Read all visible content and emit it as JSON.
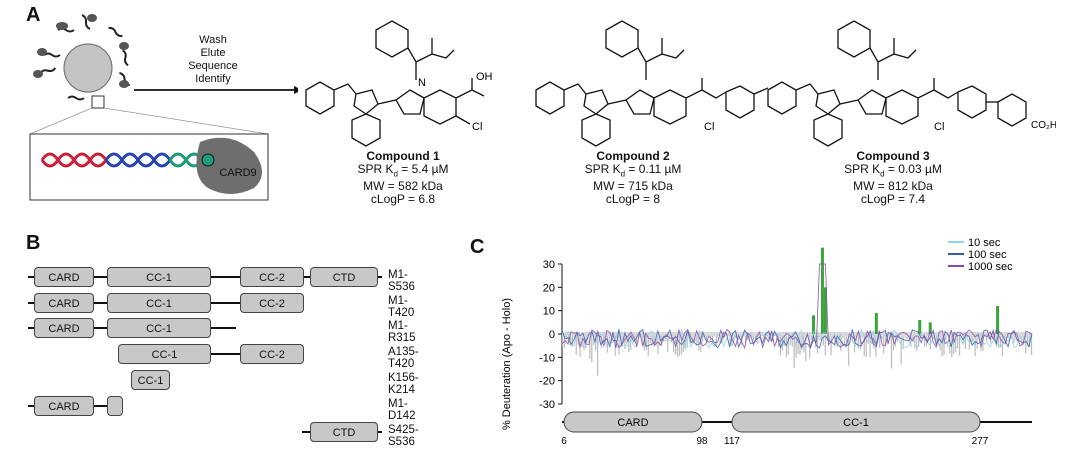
{
  "panels": {
    "a": "A",
    "b": "B",
    "c": "C"
  },
  "panel_a": {
    "steps": [
      "Wash",
      "Elute",
      "Sequence",
      "Identify"
    ],
    "card_label": "CARD9",
    "compounds": [
      {
        "name": "Compound 1",
        "kd": "SPR K",
        "kd_sub": "d",
        "kd_val": " = 5.4 µM",
        "mw": "MW = 582 kDa",
        "clogp": "cLogP = 6.8",
        "tail": "OH",
        "cl": "Cl"
      },
      {
        "name": "Compound 2",
        "kd": "SPR K",
        "kd_sub": "d",
        "kd_val": " = 0.11 µM",
        "mw": "MW = 715 kDa",
        "clogp": "cLogP = 8",
        "cl": "Cl"
      },
      {
        "name": "Compound 3",
        "kd": "SPR K",
        "kd_sub": "d",
        "kd_val": " = 0.03 µM",
        "mw": "MW = 812 kDa",
        "clogp": "cLogP = 7.4",
        "tail": "CO₂H",
        "cl": "Cl"
      }
    ]
  },
  "panel_b": {
    "constructs": [
      {
        "label": "M1-S536",
        "domains": [
          "CARD",
          "CC-1",
          "CC-2",
          "CTD"
        ]
      },
      {
        "label": "M1-T420",
        "domains": [
          "CARD",
          "CC-1",
          "CC-2"
        ]
      },
      {
        "label": "M1-R315",
        "domains": [
          "CARD",
          "CC-1"
        ]
      },
      {
        "label": "A135-T420",
        "domains": [
          "CC-1",
          "CC-2"
        ]
      },
      {
        "label": "K156-K214",
        "domains": [
          "CC-1"
        ]
      },
      {
        "label": "M1-D142",
        "domains": [
          "CARD"
        ]
      },
      {
        "label": "S425-S536",
        "domains": [
          "CTD"
        ]
      }
    ]
  },
  "panel_c": {
    "chart_data": {
      "type": "bar",
      "ylabel": "% Deuteration (Apo - Holo)",
      "ylim": [
        -30,
        30
      ],
      "yticks": [
        30,
        20,
        10,
        0,
        -10,
        -20,
        -30
      ],
      "legend_position": "top-right",
      "series": [
        {
          "name": "10 sec",
          "color": "#8fd3e8"
        },
        {
          "name": "100 sec",
          "color": "#3b5aa8"
        },
        {
          "name": "1000 sec",
          "color": "#8a4aa8"
        }
      ],
      "highlight_peaks": [
        {
          "residue": 180,
          "value": 37
        },
        {
          "residue": 182,
          "value": 20
        },
        {
          "residue": 174,
          "value": 8
        },
        {
          "residue": 216,
          "value": 9
        },
        {
          "residue": 245,
          "value": 6
        },
        {
          "residue": 252,
          "value": 5
        },
        {
          "residue": 297,
          "value": 12
        }
      ],
      "domains": [
        {
          "name": "CARD",
          "start": "6",
          "end": "98"
        },
        {
          "name": "CC-1",
          "start": "117",
          "end": "277"
        }
      ]
    }
  }
}
